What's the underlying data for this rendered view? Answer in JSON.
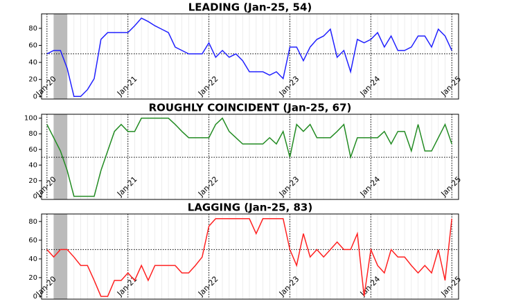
{
  "chart_data": [
    {
      "type": "line",
      "title": "LEADING (Jan-25, 54)",
      "categories": [
        "Jan-20",
        null,
        null,
        null,
        null,
        null,
        null,
        null,
        null,
        null,
        null,
        null,
        "Jan-21",
        null,
        null,
        null,
        null,
        null,
        null,
        null,
        null,
        null,
        null,
        null,
        "Jan-22",
        null,
        null,
        null,
        null,
        null,
        null,
        null,
        null,
        null,
        null,
        null,
        "Jan-23",
        null,
        null,
        null,
        null,
        null,
        null,
        null,
        null,
        null,
        null,
        null,
        "Jan-24",
        null,
        null,
        null,
        null,
        null,
        null,
        null,
        null,
        null,
        null,
        null,
        "Jan-25"
      ],
      "series": [
        {
          "color": "#2020ff",
          "values": [
            50,
            54,
            54,
            33,
            0,
            0,
            8,
            21,
            67,
            75,
            75,
            75,
            75,
            83,
            92,
            88,
            83,
            79,
            75,
            58,
            54,
            50,
            50,
            50,
            63,
            46,
            54,
            46,
            50,
            42,
            29,
            29,
            29,
            25,
            29,
            21,
            58,
            58,
            42,
            58,
            67,
            71,
            79,
            46,
            54,
            29,
            67,
            63,
            67,
            75,
            58,
            71,
            54,
            54,
            58,
            71,
            71,
            58,
            79,
            71,
            54
          ]
        }
      ],
      "xlim": [
        -0.8,
        61
      ],
      "ylim": [
        -3,
        97
      ],
      "yticks": [
        0,
        20,
        40,
        60,
        80
      ],
      "hline": 50,
      "shade": [
        1,
        3
      ]
    },
    {
      "type": "line",
      "title": "ROUGHLY COINCIDENT (Jan-25, 67)",
      "categories": [
        "Jan-20",
        null,
        null,
        null,
        null,
        null,
        null,
        null,
        null,
        null,
        null,
        null,
        "Jan-21",
        null,
        null,
        null,
        null,
        null,
        null,
        null,
        null,
        null,
        null,
        null,
        "Jan-22",
        null,
        null,
        null,
        null,
        null,
        null,
        null,
        null,
        null,
        null,
        null,
        "Jan-23",
        null,
        null,
        null,
        null,
        null,
        null,
        null,
        null,
        null,
        null,
        null,
        "Jan-24",
        null,
        null,
        null,
        null,
        null,
        null,
        null,
        null,
        null,
        null,
        null,
        "Jan-25"
      ],
      "series": [
        {
          "color": "#228b22",
          "values": [
            92,
            75,
            58,
            33,
            0,
            0,
            0,
            0,
            33,
            58,
            83,
            92,
            83,
            83,
            100,
            100,
            100,
            100,
            100,
            92,
            83,
            75,
            75,
            75,
            75,
            92,
            100,
            83,
            75,
            67,
            67,
            67,
            67,
            75,
            67,
            83,
            50,
            92,
            83,
            92,
            75,
            75,
            75,
            83,
            92,
            50,
            75,
            75,
            75,
            75,
            83,
            67,
            83,
            83,
            58,
            92,
            58,
            58,
            75,
            92,
            67
          ]
        }
      ],
      "xlim": [
        -0.8,
        61
      ],
      "ylim": [
        -4,
        105
      ],
      "yticks": [
        0,
        20,
        40,
        60,
        80,
        100
      ],
      "hline": 50,
      "shade": [
        1,
        3
      ]
    },
    {
      "type": "line",
      "title": "LAGGING (Jan-25, 83)",
      "categories": [
        "Jan-20",
        null,
        null,
        null,
        null,
        null,
        null,
        null,
        null,
        null,
        null,
        null,
        "Jan-21",
        null,
        null,
        null,
        null,
        null,
        null,
        null,
        null,
        null,
        null,
        null,
        "Jan-22",
        null,
        null,
        null,
        null,
        null,
        null,
        null,
        null,
        null,
        null,
        null,
        "Jan-23",
        null,
        null,
        null,
        null,
        null,
        null,
        null,
        null,
        null,
        null,
        null,
        "Jan-24",
        null,
        null,
        null,
        null,
        null,
        null,
        null,
        null,
        null,
        null,
        null,
        "Jan-25"
      ],
      "series": [
        {
          "color": "#ff2020",
          "values": [
            50,
            42,
            50,
            50,
            42,
            33,
            33,
            17,
            0,
            0,
            17,
            17,
            25,
            17,
            33,
            17,
            33,
            33,
            33,
            33,
            25,
            25,
            33,
            42,
            75,
            83,
            83,
            83,
            83,
            83,
            83,
            67,
            83,
            83,
            83,
            83,
            50,
            33,
            67,
            42,
            50,
            42,
            50,
            58,
            50,
            50,
            67,
            0,
            50,
            33,
            25,
            50,
            42,
            42,
            33,
            25,
            33,
            25,
            50,
            17,
            83
          ]
        }
      ],
      "xlim": [
        -0.8,
        61
      ],
      "ylim": [
        -3,
        88
      ],
      "yticks": [
        0,
        20,
        40,
        60,
        80
      ],
      "hline": 50,
      "shade": [
        1,
        3
      ]
    }
  ]
}
